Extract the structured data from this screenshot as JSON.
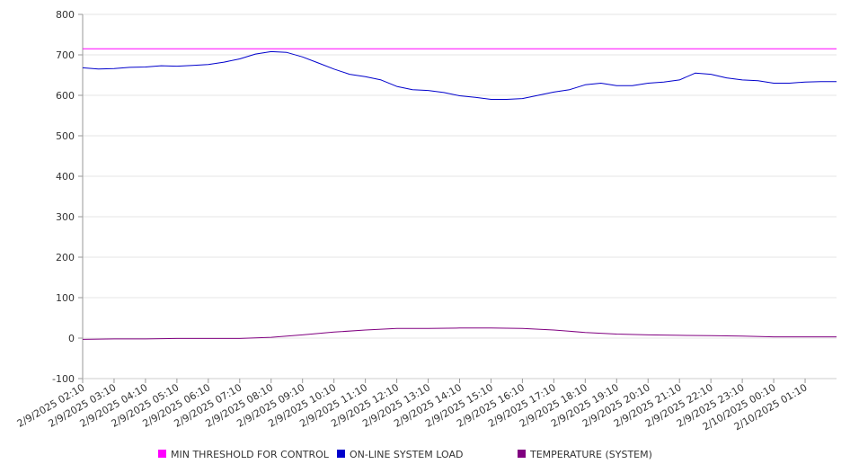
{
  "chart_data": {
    "type": "line",
    "y_ticks": [
      "800",
      "700",
      "600",
      "500",
      "400",
      "300",
      "200",
      "100",
      "0",
      "-100"
    ],
    "ylim": [
      -100,
      800
    ],
    "grid": true,
    "legend_position": "bottom",
    "x_tick_labels": [
      "2/9/2025 02:10",
      "2/9/2025 03:10",
      "2/9/2025 04:10",
      "2/9/2025 05:10",
      "2/9/2025 06:10",
      "2/9/2025 07:10",
      "2/9/2025 08:10",
      "2/9/2025 09:10",
      "2/9/2025 10:10",
      "2/9/2025 11:10",
      "2/9/2025 12:10",
      "2/9/2025 13:10",
      "2/9/2025 14:10",
      "2/9/2025 15:10",
      "2/9/2025 16:10",
      "2/9/2025 17:10",
      "2/9/2025 18:10",
      "2/9/2025 19:10",
      "2/9/2025 20:10",
      "2/9/2025 21:10",
      "2/9/2025 22:10",
      "2/9/2025 23:10",
      "2/10/2025 00:10",
      "2/10/2025 01:10"
    ],
    "x_range": [
      "2/9/2025 02:10",
      "2/10/2025 02:10"
    ],
    "series": [
      {
        "name": "MIN THRESHOLD FOR CONTROL",
        "color": "#ff00ff",
        "x": [
          "2/9/2025 02:10",
          "2/10/2025 02:10"
        ],
        "values": [
          715,
          715
        ]
      },
      {
        "name": "ON-LINE SYSTEM LOAD",
        "color": "#0000cc",
        "x": [
          "2/9/2025 02:10",
          "2/9/2025 02:40",
          "2/9/2025 03:10",
          "2/9/2025 03:40",
          "2/9/2025 04:10",
          "2/9/2025 04:40",
          "2/9/2025 05:10",
          "2/9/2025 05:40",
          "2/9/2025 06:10",
          "2/9/2025 06:40",
          "2/9/2025 07:10",
          "2/9/2025 07:40",
          "2/9/2025 08:10",
          "2/9/2025 08:40",
          "2/9/2025 09:10",
          "2/9/2025 09:40",
          "2/9/2025 10:10",
          "2/9/2025 10:40",
          "2/9/2025 11:10",
          "2/9/2025 11:40",
          "2/9/2025 12:10",
          "2/9/2025 12:40",
          "2/9/2025 13:10",
          "2/9/2025 13:40",
          "2/9/2025 14:10",
          "2/9/2025 14:40",
          "2/9/2025 15:10",
          "2/9/2025 15:40",
          "2/9/2025 16:10",
          "2/9/2025 16:40",
          "2/9/2025 17:10",
          "2/9/2025 17:40",
          "2/9/2025 18:10",
          "2/9/2025 18:40",
          "2/9/2025 19:10",
          "2/9/2025 19:40",
          "2/9/2025 20:10",
          "2/9/2025 20:40",
          "2/9/2025 21:10",
          "2/9/2025 21:40",
          "2/9/2025 22:10",
          "2/9/2025 22:40",
          "2/9/2025 23:10",
          "2/9/2025 23:40",
          "2/10/2025 00:10",
          "2/10/2025 00:40",
          "2/10/2025 01:10",
          "2/10/2025 01:40",
          "2/10/2025 02:10"
        ],
        "values": [
          668,
          665,
          666,
          669,
          670,
          673,
          672,
          674,
          676,
          682,
          690,
          702,
          708,
          706,
          695,
          680,
          665,
          652,
          646,
          638,
          622,
          614,
          612,
          607,
          599,
          595,
          590,
          590,
          592,
          600,
          608,
          614,
          626,
          630,
          624,
          624,
          630,
          633,
          638,
          655,
          652,
          643,
          638,
          636,
          630,
          630,
          633,
          634,
          634
        ]
      },
      {
        "name": "TEMPERATURE (SYSTEM)",
        "color": "#800080",
        "x": [
          "2/9/2025 02:10",
          "2/9/2025 03:10",
          "2/9/2025 04:10",
          "2/9/2025 05:10",
          "2/9/2025 06:10",
          "2/9/2025 07:10",
          "2/9/2025 08:10",
          "2/9/2025 09:10",
          "2/9/2025 10:10",
          "2/9/2025 11:10",
          "2/9/2025 12:10",
          "2/9/2025 13:10",
          "2/9/2025 14:10",
          "2/9/2025 15:10",
          "2/9/2025 16:10",
          "2/9/2025 17:10",
          "2/9/2025 18:10",
          "2/9/2025 19:10",
          "2/9/2025 20:10",
          "2/9/2025 21:10",
          "2/9/2025 22:10",
          "2/9/2025 23:10",
          "2/10/2025 00:10",
          "2/10/2025 01:10",
          "2/10/2025 02:10"
        ],
        "values": [
          -3,
          -2,
          -2,
          -1,
          -1,
          -1,
          2,
          8,
          15,
          20,
          24,
          24,
          25,
          25,
          24,
          20,
          14,
          10,
          8,
          7,
          6,
          5,
          3,
          3,
          3
        ]
      }
    ]
  }
}
